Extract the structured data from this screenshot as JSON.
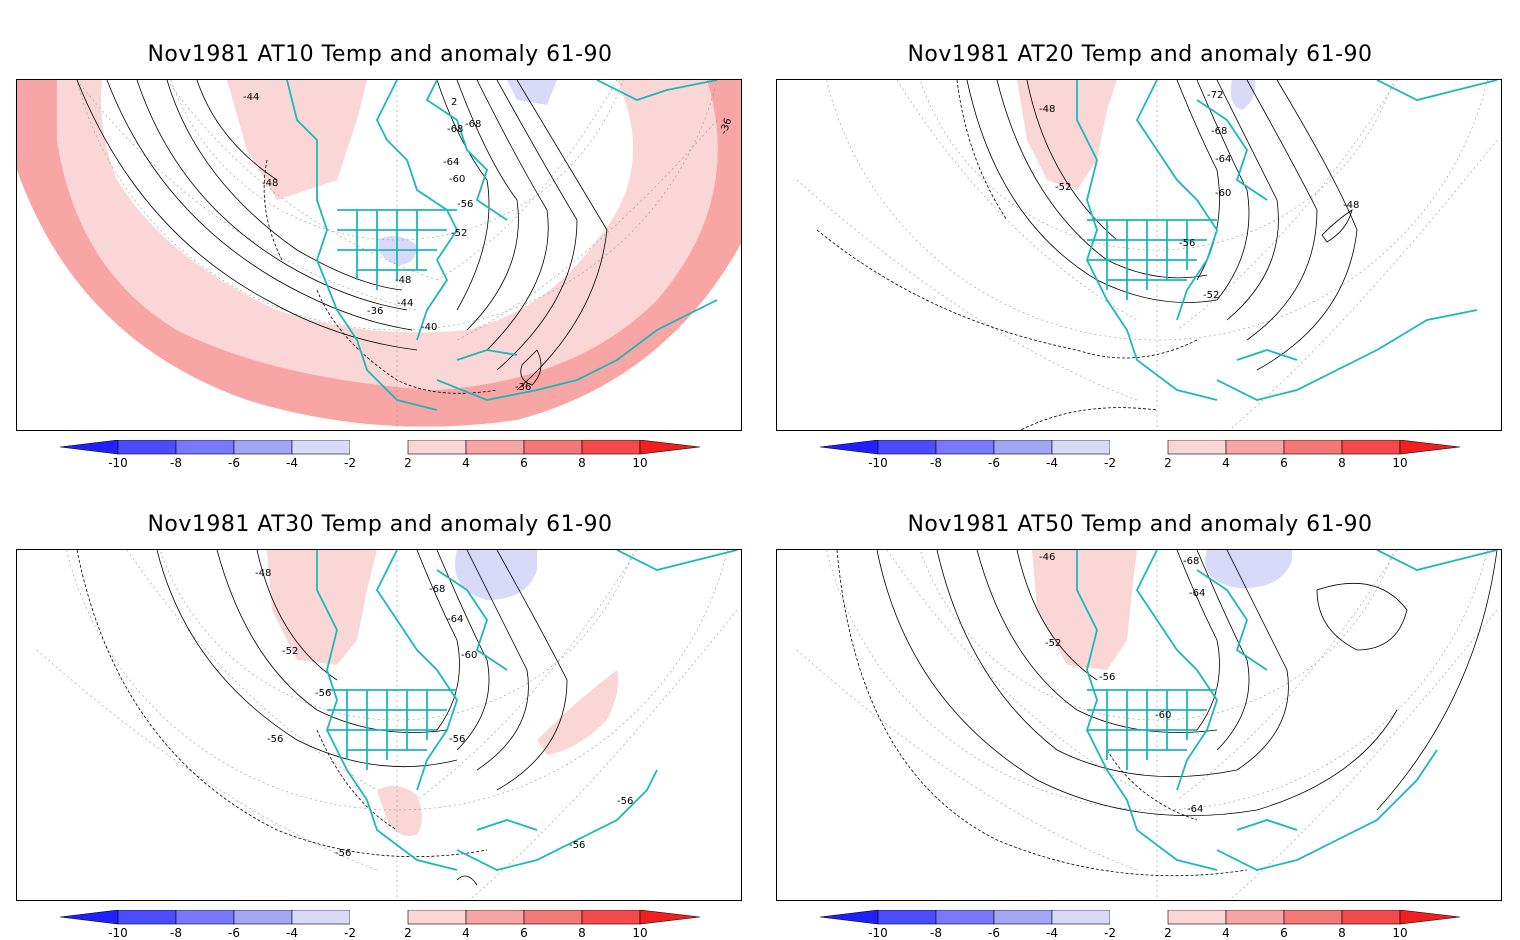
{
  "panels": [
    {
      "title": "Nov1981 AT10 Temp and anomaly 61-90",
      "contour_labels": [
        "-44",
        "-68",
        "2",
        "-68",
        "-64",
        "-60",
        "-56",
        "-52",
        "-48",
        "-48",
        "-44",
        "-36",
        "-40",
        "-36",
        "-36"
      ]
    },
    {
      "title": "Nov1981 AT20 Temp and anomaly 61-90",
      "contour_labels": [
        "-48",
        "-72",
        "-68",
        "-64",
        "-60",
        "-56",
        "-52",
        "-52",
        "-48"
      ]
    },
    {
      "title": "Nov1981 AT30 Temp and anomaly 61-90",
      "contour_labels": [
        "-48",
        "-68",
        "-64",
        "-60",
        "-52",
        "-56",
        "-56",
        "-56",
        "-56",
        "-56",
        "-56"
      ]
    },
    {
      "title": "Nov1981 AT50 Temp and anomaly 61-90",
      "contour_labels": [
        "-46",
        "-68",
        "-64",
        "-52",
        "-56",
        "-60",
        "-64"
      ]
    }
  ],
  "colorbar": {
    "labels": [
      "-10",
      "-8",
      "-6",
      "-4",
      "-2",
      "2",
      "4",
      "6",
      "8",
      "10"
    ],
    "colors": [
      "#1f1fff",
      "#4c4cff",
      "#7878ff",
      "#a5a5f5",
      "#d9d9f9",
      "#ffffff",
      "#fbd6d6",
      "#f7a5a5",
      "#f57878",
      "#f44a4a",
      "#f21f1f"
    ]
  },
  "colors": {
    "coast": "#1cb8b8",
    "anom_pos_light": "#fbd6d6",
    "anom_pos_mid": "#f7a5a5",
    "anom_neg_light": "#d9d9f9"
  }
}
